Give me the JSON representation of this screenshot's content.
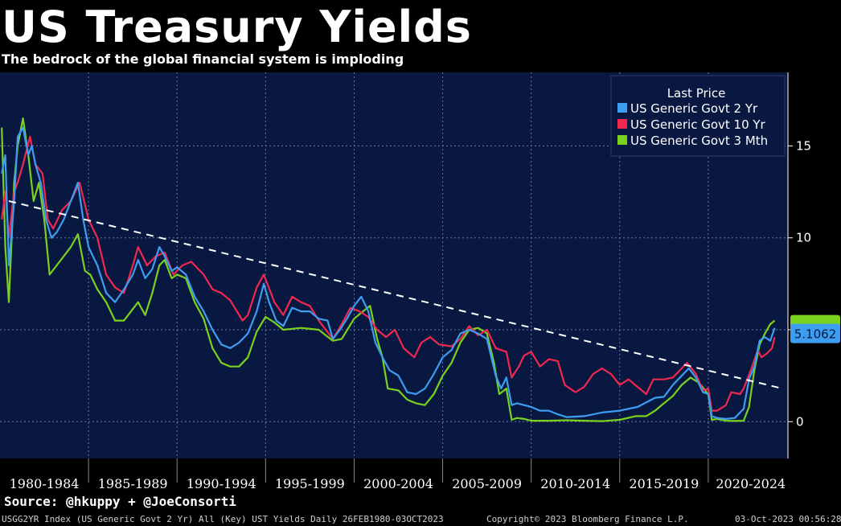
{
  "header": {
    "title": "US Treasury Yields",
    "subtitle": "The bedrock of the global financial system is imploding"
  },
  "source": "Source: @hkuppy + @JoeConsorti",
  "footer": {
    "left": "USGG2YR Index (US Generic Govt 2 Yr) All (Key) UST Yields  Daily 26FEB1980-03OCT2023",
    "center": "Copyright© 2023 Bloomberg Finance L.P.",
    "right": "03-Oct-2023 00:56:28"
  },
  "chart_data": {
    "type": "line",
    "title": "US Treasury Yields",
    "subtitle": "The bedrock of the global financial system is imploding",
    "legend_title": "Last Price",
    "legend_position": "top-right",
    "grid": true,
    "ylim": [
      -2,
      19
    ],
    "xlim": [
      1980.0,
      2024.5
    ],
    "y_ticks": [
      0,
      5,
      10,
      15
    ],
    "y_tick_labels": [
      "0",
      "",
      "10",
      "15"
    ],
    "x_categories": [
      "1980-1984",
      "1985-1989",
      "1990-1994",
      "1995-1999",
      "2000-2004",
      "2005-2009",
      "2010-2014",
      "2015-2019",
      "2020-2024"
    ],
    "last_price_label": "5.1062",
    "colors": {
      "background": "#0a1a3e",
      "plot_background": "#081840",
      "grid": "#6878a0",
      "2y": "#3d9df0",
      "10y": "#f0284f",
      "3m": "#7ad11e",
      "trend": "#ffffff"
    },
    "trendline": {
      "x": [
        1980.5,
        2024.2
      ],
      "y": [
        12.0,
        1.8
      ]
    },
    "series": [
      {
        "name": "US Generic Govt 2 Yr",
        "key": "2y",
        "x": [
          1980.1,
          1980.3,
          1980.5,
          1980.8,
          1981.0,
          1981.3,
          1981.6,
          1981.8,
          1982.0,
          1982.3,
          1982.6,
          1982.9,
          1983.2,
          1983.6,
          1984.0,
          1984.4,
          1984.7,
          1985.0,
          1985.5,
          1986.0,
          1986.5,
          1987.0,
          1987.5,
          1987.8,
          1988.2,
          1988.6,
          1989.0,
          1989.3,
          1989.7,
          1990.0,
          1990.5,
          1991.0,
          1991.5,
          1992.0,
          1992.5,
          1993.0,
          1993.5,
          1994.0,
          1994.5,
          1994.9,
          1995.2,
          1995.6,
          1996.0,
          1996.5,
          1997.0,
          1997.5,
          1998.0,
          1998.5,
          1998.8,
          1999.2,
          1999.6,
          2000.0,
          2000.4,
          2000.8,
          2001.2,
          2001.6,
          2002.0,
          2002.5,
          2003.0,
          2003.5,
          2004.0,
          2004.5,
          2005.0,
          2005.5,
          2006.0,
          2006.5,
          2007.0,
          2007.5,
          2008.0,
          2008.3,
          2008.6,
          2008.9,
          2009.2,
          2009.6,
          2010.0,
          2010.5,
          2011.0,
          2011.5,
          2012.0,
          2013.0,
          2014.0,
          2015.0,
          2016.0,
          2017.0,
          2017.5,
          2018.0,
          2018.5,
          2018.9,
          2019.3,
          2019.7,
          2020.0,
          2020.2,
          2020.5,
          2021.0,
          2021.5,
          2022.0,
          2022.3,
          2022.6,
          2022.9,
          2023.2,
          2023.5,
          2023.75
        ],
        "values": [
          13.5,
          14.5,
          8.5,
          12.0,
          15.5,
          16.0,
          14.5,
          15.0,
          14.0,
          13.0,
          11.0,
          10.0,
          10.3,
          11.0,
          12.0,
          13.0,
          11.0,
          9.5,
          8.5,
          7.0,
          6.5,
          7.2,
          8.0,
          8.8,
          7.8,
          8.3,
          9.5,
          9.0,
          8.2,
          8.4,
          8.0,
          6.8,
          6.0,
          5.0,
          4.2,
          4.0,
          4.3,
          4.8,
          6.0,
          7.5,
          6.5,
          5.5,
          5.2,
          6.2,
          6.0,
          6.0,
          5.6,
          5.5,
          4.5,
          5.0,
          5.6,
          6.3,
          6.8,
          6.0,
          4.3,
          3.5,
          2.8,
          2.5,
          1.6,
          1.5,
          1.8,
          2.6,
          3.5,
          3.9,
          4.8,
          5.0,
          4.8,
          4.5,
          2.5,
          1.8,
          2.4,
          0.9,
          1.0,
          0.9,
          0.8,
          0.6,
          0.6,
          0.4,
          0.25,
          0.3,
          0.5,
          0.6,
          0.8,
          1.3,
          1.35,
          2.0,
          2.5,
          2.9,
          2.4,
          1.6,
          1.5,
          0.3,
          0.2,
          0.15,
          0.2,
          0.7,
          2.3,
          3.0,
          4.4,
          4.6,
          4.4,
          5.1
        ]
      },
      {
        "name": "US Generic Govt 10 Yr",
        "key": "10y",
        "x": [
          1980.1,
          1980.3,
          1980.5,
          1980.8,
          1981.0,
          1981.3,
          1981.7,
          1982.0,
          1982.4,
          1982.7,
          1983.0,
          1983.5,
          1984.0,
          1984.5,
          1985.0,
          1985.5,
          1986.0,
          1986.5,
          1987.0,
          1987.5,
          1987.8,
          1988.3,
          1988.8,
          1989.3,
          1989.8,
          1990.3,
          1990.8,
          1991.5,
          1992.0,
          1992.5,
          1993.0,
          1993.7,
          1994.0,
          1994.5,
          1994.9,
          1995.5,
          1996.0,
          1996.5,
          1997.0,
          1997.5,
          1998.0,
          1998.8,
          1999.3,
          1999.8,
          2000.3,
          2000.8,
          2001.3,
          2001.8,
          2002.3,
          2002.8,
          2003.4,
          2003.8,
          2004.3,
          2004.8,
          2005.5,
          2006.0,
          2006.5,
          2007.0,
          2007.5,
          2008.0,
          2008.6,
          2008.9,
          2009.3,
          2009.6,
          2010.0,
          2010.5,
          2011.0,
          2011.5,
          2011.9,
          2012.5,
          2013.0,
          2013.5,
          2014.0,
          2014.5,
          2015.0,
          2015.5,
          2016.0,
          2016.5,
          2016.9,
          2017.5,
          2018.0,
          2018.5,
          2018.8,
          2019.3,
          2019.7,
          2020.0,
          2020.2,
          2020.5,
          2021.0,
          2021.3,
          2021.8,
          2022.0,
          2022.4,
          2022.8,
          2023.0,
          2023.3,
          2023.6,
          2023.75
        ],
        "values": [
          11.0,
          12.5,
          10.0,
          12.5,
          13.0,
          14.0,
          15.5,
          14.0,
          13.5,
          11.0,
          10.5,
          11.5,
          12.0,
          13.0,
          11.0,
          10.0,
          8.0,
          7.3,
          7.0,
          8.5,
          9.5,
          8.5,
          9.0,
          9.2,
          8.0,
          8.5,
          8.7,
          8.0,
          7.2,
          7.0,
          6.6,
          5.5,
          5.8,
          7.3,
          8.0,
          6.5,
          5.8,
          6.8,
          6.5,
          6.3,
          5.5,
          4.5,
          5.3,
          6.2,
          6.0,
          5.7,
          5.0,
          4.6,
          5.0,
          4.0,
          3.5,
          4.3,
          4.6,
          4.2,
          4.1,
          4.5,
          5.2,
          4.7,
          5.0,
          4.0,
          3.8,
          2.4,
          3.0,
          3.6,
          3.8,
          3.0,
          3.4,
          3.3,
          2.0,
          1.6,
          1.9,
          2.6,
          2.9,
          2.6,
          2.0,
          2.3,
          1.9,
          1.5,
          2.3,
          2.3,
          2.4,
          2.9,
          3.2,
          2.6,
          1.7,
          1.8,
          0.6,
          0.6,
          0.9,
          1.6,
          1.5,
          1.8,
          2.8,
          3.9,
          3.5,
          3.7,
          4.0,
          4.6
        ]
      },
      {
        "name": "US Generic Govt 3 Mth",
        "key": "3m",
        "x": [
          1980.1,
          1980.3,
          1980.5,
          1980.8,
          1981.0,
          1981.3,
          1981.6,
          1981.9,
          1982.2,
          1982.5,
          1982.8,
          1983.2,
          1983.6,
          1984.0,
          1984.4,
          1984.8,
          1985.1,
          1985.5,
          1986.0,
          1986.5,
          1987.0,
          1987.4,
          1987.8,
          1988.2,
          1988.6,
          1989.0,
          1989.3,
          1989.7,
          1990.0,
          1990.5,
          1991.0,
          1991.5,
          1992.0,
          1992.5,
          1993.0,
          1993.5,
          1994.0,
          1994.5,
          1995.0,
          1995.5,
          1996.0,
          1997.0,
          1998.0,
          1998.8,
          1999.3,
          2000.0,
          2000.5,
          2000.9,
          2001.3,
          2001.6,
          2001.9,
          2002.5,
          2003.0,
          2003.5,
          2004.0,
          2004.5,
          2005.0,
          2005.5,
          2006.0,
          2006.5,
          2007.0,
          2007.5,
          2007.9,
          2008.2,
          2008.6,
          2008.9,
          2009.2,
          2009.6,
          2010.0,
          2011.0,
          2012.0,
          2013.0,
          2014.0,
          2015.0,
          2015.9,
          2016.5,
          2017.0,
          2017.5,
          2018.0,
          2018.5,
          2019.0,
          2019.5,
          2019.9,
          2020.0,
          2020.2,
          2020.5,
          2021.0,
          2021.5,
          2022.0,
          2022.3,
          2022.6,
          2022.9,
          2023.2,
          2023.5,
          2023.75
        ],
        "values": [
          16.0,
          9.5,
          6.5,
          13.0,
          15.0,
          16.5,
          14.5,
          12.0,
          13.0,
          11.0,
          8.0,
          8.5,
          9.0,
          9.5,
          10.2,
          8.2,
          8.0,
          7.2,
          6.5,
          5.5,
          5.5,
          6.0,
          6.5,
          5.8,
          7.0,
          8.5,
          8.8,
          7.8,
          8.0,
          7.8,
          6.5,
          5.6,
          4.0,
          3.2,
          3.0,
          3.0,
          3.5,
          4.9,
          5.7,
          5.4,
          5.0,
          5.1,
          5.0,
          4.4,
          4.5,
          5.6,
          6.0,
          6.3,
          4.5,
          3.5,
          1.8,
          1.7,
          1.2,
          1.0,
          0.9,
          1.5,
          2.5,
          3.2,
          4.3,
          5.0,
          5.1,
          4.8,
          3.2,
          1.5,
          1.8,
          0.1,
          0.2,
          0.15,
          0.05,
          0.05,
          0.08,
          0.05,
          0.03,
          0.1,
          0.3,
          0.3,
          0.6,
          1.0,
          1.4,
          2.0,
          2.4,
          2.1,
          1.6,
          1.5,
          0.1,
          0.15,
          0.05,
          0.04,
          0.05,
          0.8,
          2.8,
          4.2,
          4.8,
          5.3,
          5.5
        ]
      }
    ]
  }
}
